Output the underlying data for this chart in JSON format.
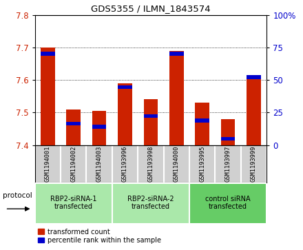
{
  "title": "GDS5355 / ILMN_1843574",
  "samples": [
    "GSM1194001",
    "GSM1194002",
    "GSM1194003",
    "GSM1193996",
    "GSM1193998",
    "GSM1194000",
    "GSM1193995",
    "GSM1193997",
    "GSM1193999"
  ],
  "red_values": [
    7.7,
    7.51,
    7.505,
    7.59,
    7.54,
    7.69,
    7.53,
    7.48,
    7.605
  ],
  "blue_values": [
    7.675,
    7.46,
    7.45,
    7.572,
    7.483,
    7.675,
    7.47,
    7.413,
    7.603
  ],
  "ylim_left": [
    7.4,
    7.8
  ],
  "ylim_right": [
    0,
    100
  ],
  "yticks_left": [
    7.4,
    7.5,
    7.6,
    7.7,
    7.8
  ],
  "yticks_right": [
    0,
    25,
    50,
    75,
    100
  ],
  "ytick_labels_right": [
    "0",
    "25",
    "50",
    "75",
    "100%"
  ],
  "groups": [
    {
      "label": "RBP2-siRNA-1\ntransfected",
      "start": 0,
      "end": 3,
      "color": "#aae8aa"
    },
    {
      "label": "RBP2-siRNA-2\ntransfected",
      "start": 3,
      "end": 6,
      "color": "#aae8aa"
    },
    {
      "label": "control siRNA\ntransfected",
      "start": 6,
      "end": 9,
      "color": "#66cc66"
    }
  ],
  "protocol_label": "protocol",
  "bar_width": 0.55,
  "baseline": 7.4,
  "red_color": "#cc2200",
  "blue_color": "#0000cc",
  "gray_color": "#d0d0d0",
  "legend_red_label": "transformed count",
  "legend_blue_label": "percentile rank within the sample"
}
